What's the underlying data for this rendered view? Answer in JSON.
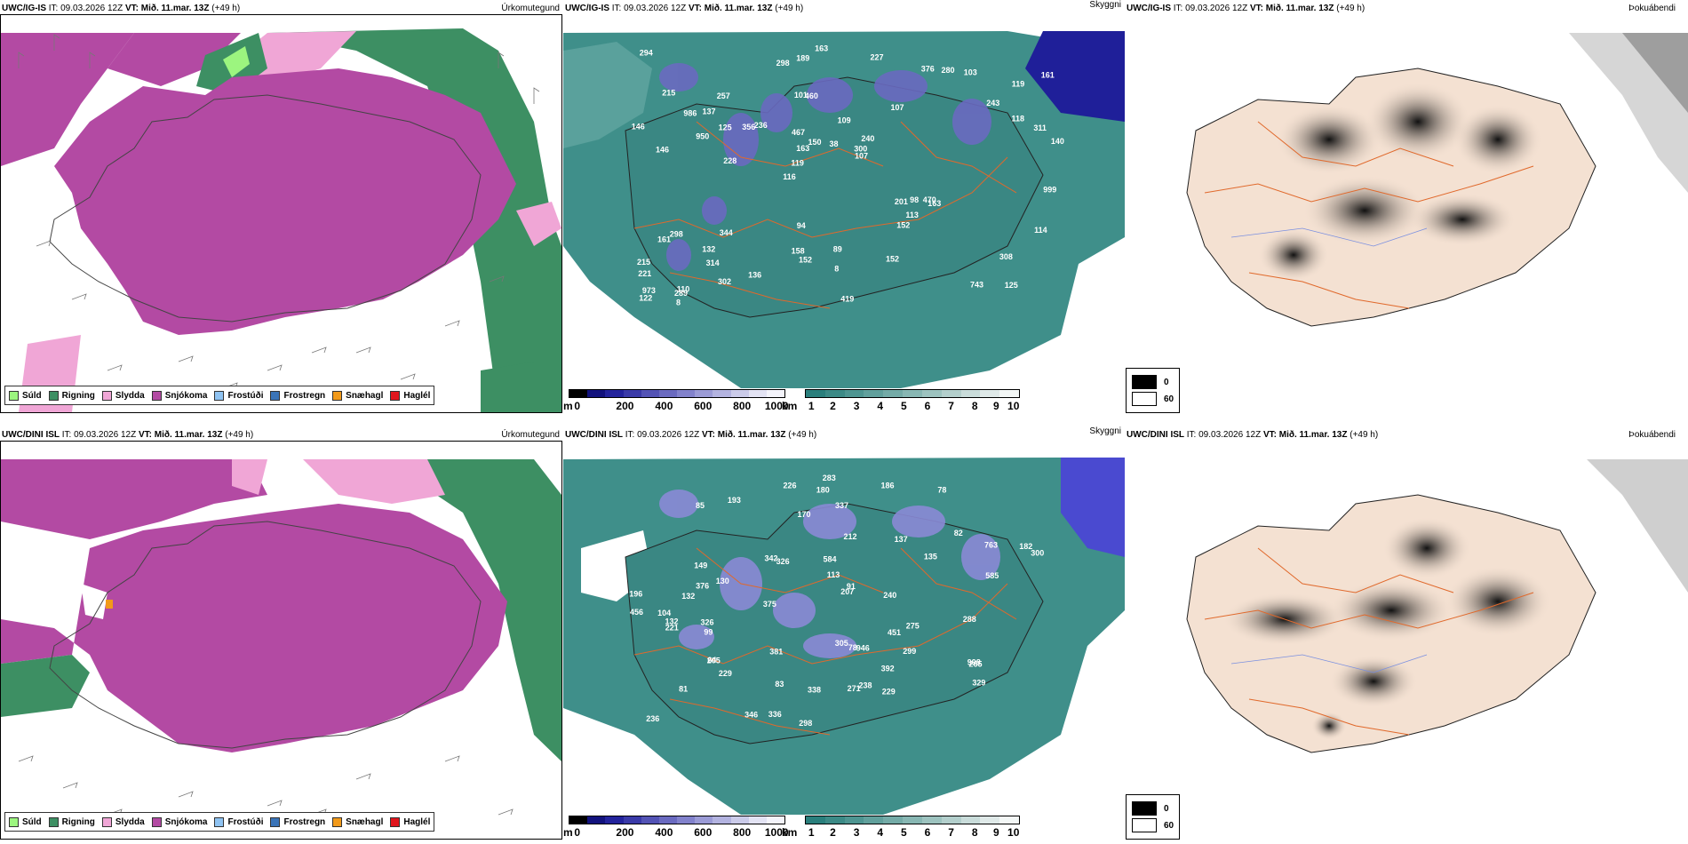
{
  "rows": [
    {
      "model": "UWC/IG-IS",
      "init": "IT: 09.03.2026 12Z",
      "valid": "VT: Mið. 11.mar. 13Z",
      "lead": "(+49 h)",
      "cloud_labels": [
        "125",
        "146",
        "119",
        "116",
        "107",
        "110",
        "101",
        "109",
        "298",
        "236",
        "221",
        "314",
        "460",
        "240",
        "163",
        "215",
        "189",
        "140",
        "201",
        "118",
        "119",
        "158",
        "163",
        "257",
        "376",
        "344",
        "743",
        "308",
        "470",
        "419",
        "356",
        "950",
        "152",
        "302",
        "311",
        "300",
        "973",
        "152",
        "107",
        "161",
        "243",
        "161",
        "113",
        "152",
        "132",
        "8",
        "122",
        "89",
        "103",
        "163",
        "228",
        "146",
        "137",
        "280",
        "289",
        "227",
        "298",
        "150",
        "114",
        "94",
        "136",
        "98",
        "125",
        "215",
        "294",
        "986",
        "999",
        "467",
        "8",
        "38"
      ]
    },
    {
      "model": "UWC/DINI ISL",
      "init": "IT: 09.03.2026 12Z",
      "valid": "VT: Mið. 11.mar. 13Z",
      "lead": "(+49 h)",
      "cloud_labels": [
        "81",
        "78",
        "193",
        "82",
        "78",
        "130",
        "99",
        "64",
        "763",
        "135",
        "104",
        "283",
        "299",
        "207",
        "298",
        "226",
        "329",
        "196",
        "205",
        "336",
        "229",
        "180",
        "170",
        "91",
        "113",
        "83",
        "132",
        "186",
        "212",
        "275",
        "149",
        "229",
        "238",
        "305",
        "265",
        "221",
        "182",
        "240",
        "137",
        "288",
        "300",
        "337",
        "338",
        "326",
        "456",
        "376",
        "451",
        "271",
        "381",
        "392",
        "326",
        "346",
        "584",
        "585",
        "375",
        "946",
        "342",
        "998",
        "85",
        "132",
        "236"
      ]
    }
  ],
  "panel_titles": {
    "precip": "Úrkomutegund",
    "cloud": "Skyggni",
    "fog": "Þokuábendi"
  },
  "precip_legend": [
    {
      "label": "Súld",
      "color": "#9cf57f"
    },
    {
      "label": "Rigning",
      "color": "#3d8f63"
    },
    {
      "label": "Slydda",
      "color": "#f0a6d6"
    },
    {
      "label": "Snjókoma",
      "color": "#b34aa3"
    },
    {
      "label": "Frostúði",
      "color": "#8fc3f2"
    },
    {
      "label": "Frostregn",
      "color": "#3a74b8"
    },
    {
      "label": "Snæhagl",
      "color": "#f29a1a"
    },
    {
      "label": "Haglél",
      "color": "#e0161d"
    }
  ],
  "cloudbase_scale": {
    "unit": "m",
    "ticks": [
      "0",
      "200",
      "400",
      "600",
      "800",
      "1000"
    ],
    "colors": [
      "#000000",
      "#12127d",
      "#23239c",
      "#3a3aa8",
      "#5353b5",
      "#6a6ac0",
      "#8282cc",
      "#9b9bd6",
      "#b3b3e0",
      "#cbcbe9",
      "#e3e3f3",
      "#f4f4fb"
    ]
  },
  "visibility_scale": {
    "unit": "km",
    "ticks": [
      "1",
      "2",
      "3",
      "4",
      "5",
      "6",
      "7",
      "8",
      "9",
      "10"
    ],
    "colors": [
      "#2a7f7c",
      "#3c8a86",
      "#4e9591",
      "#61a09c",
      "#74aba7",
      "#88b7b3",
      "#9dc3bf",
      "#b3cfcc",
      "#c9dcda",
      "#dfe9e8",
      "#f3f7f6"
    ]
  },
  "fog_legend": [
    {
      "label": "0",
      "color": "#000000"
    },
    {
      "label": "60",
      "color": "#ffffff"
    }
  ],
  "colors": {
    "snow": "#b34aa3",
    "rain": "#3d8f63",
    "sleet": "#f0a6d6",
    "drizzle": "#9cf57f",
    "teal": "#3f8f8a",
    "land_beige": "#f4e1d2",
    "roads": "#e0692c"
  }
}
